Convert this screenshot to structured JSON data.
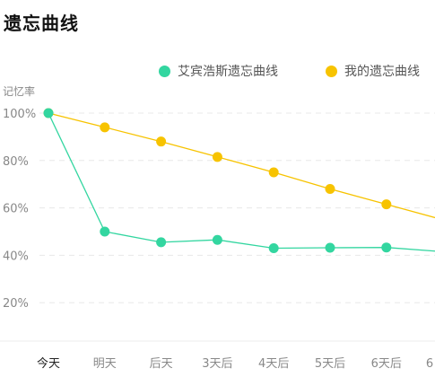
{
  "title": "遗忘曲线",
  "colors": {
    "ebbinghaus": "#33D6A0",
    "mine": "#F7C300",
    "grid": "#E8E8E8",
    "axis_text": "#888888",
    "active_tick": "#222222"
  },
  "chart_data": {
    "type": "line",
    "title": "遗忘曲线",
    "ylabel": "记忆率",
    "xlabel": "",
    "categories": [
      "今天",
      "明天",
      "后天",
      "3天后",
      "4天后",
      "5天后",
      "6天后",
      "6"
    ],
    "y_ticks": [
      "100%",
      "80%",
      "60%",
      "40%",
      "20%"
    ],
    "ylim": [
      0,
      105
    ],
    "grid": true,
    "legend_position": "top-right",
    "series": [
      {
        "name": "艾宾浩斯遗忘曲线",
        "color": "#33D6A0",
        "values": [
          100,
          50,
          45.5,
          46.5,
          43,
          43.2,
          43.3,
          41.5
        ]
      },
      {
        "name": "我的遗忘曲线",
        "color": "#F7C300",
        "values": [
          100,
          94,
          88,
          81.5,
          75,
          68,
          61.5,
          55
        ]
      }
    ]
  }
}
